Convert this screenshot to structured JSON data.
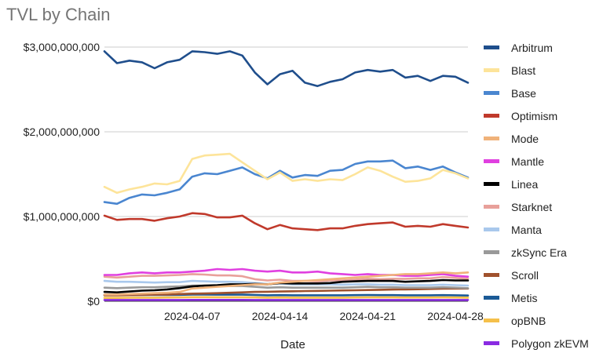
{
  "chart_data": {
    "type": "line",
    "title": "TVL by Chain",
    "xlabel": "Date",
    "ylabel": "",
    "ylim": [
      0,
      3000000000
    ],
    "y_ticks": [
      {
        "value": 0,
        "label": "$0"
      },
      {
        "value": 1000000000,
        "label": "$1,000,000,000"
      },
      {
        "value": 2000000000,
        "label": "$2,000,000,000"
      },
      {
        "value": 3000000000,
        "label": "$3,000,000,000"
      }
    ],
    "x_ticks": [
      "2024-04-07",
      "2024-04-14",
      "2024-04-21",
      "2024-04-28"
    ],
    "x": [
      "2024-03-31",
      "2024-04-01",
      "2024-04-02",
      "2024-04-03",
      "2024-04-04",
      "2024-04-05",
      "2024-04-06",
      "2024-04-07",
      "2024-04-08",
      "2024-04-09",
      "2024-04-10",
      "2024-04-11",
      "2024-04-12",
      "2024-04-13",
      "2024-04-14",
      "2024-04-15",
      "2024-04-16",
      "2024-04-17",
      "2024-04-18",
      "2024-04-19",
      "2024-04-20",
      "2024-04-21",
      "2024-04-22",
      "2024-04-23",
      "2024-04-24",
      "2024-04-25",
      "2024-04-26",
      "2024-04-27",
      "2024-04-28",
      "2024-04-29"
    ],
    "grid": true,
    "legend_position": "right",
    "series": [
      {
        "name": "Arbitrum",
        "color": "#1f4e8c",
        "values": [
          2950000000,
          2810000000,
          2840000000,
          2820000000,
          2750000000,
          2820000000,
          2850000000,
          2950000000,
          2940000000,
          2920000000,
          2950000000,
          2900000000,
          2700000000,
          2560000000,
          2680000000,
          2720000000,
          2580000000,
          2540000000,
          2590000000,
          2620000000,
          2700000000,
          2730000000,
          2710000000,
          2730000000,
          2640000000,
          2660000000,
          2600000000,
          2660000000,
          2650000000,
          2580000000
        ]
      },
      {
        "name": "Blast",
        "color": "#fde49a",
        "values": [
          1350000000,
          1280000000,
          1320000000,
          1350000000,
          1390000000,
          1380000000,
          1420000000,
          1680000000,
          1720000000,
          1730000000,
          1740000000,
          1640000000,
          1540000000,
          1440000000,
          1520000000,
          1420000000,
          1440000000,
          1420000000,
          1440000000,
          1430000000,
          1500000000,
          1580000000,
          1540000000,
          1470000000,
          1410000000,
          1420000000,
          1450000000,
          1550000000,
          1510000000,
          1450000000
        ]
      },
      {
        "name": "Base",
        "color": "#4a86d0",
        "values": [
          1170000000,
          1150000000,
          1220000000,
          1260000000,
          1250000000,
          1280000000,
          1320000000,
          1470000000,
          1510000000,
          1500000000,
          1540000000,
          1580000000,
          1500000000,
          1450000000,
          1540000000,
          1460000000,
          1490000000,
          1480000000,
          1540000000,
          1550000000,
          1620000000,
          1650000000,
          1650000000,
          1660000000,
          1570000000,
          1590000000,
          1550000000,
          1590000000,
          1520000000,
          1460000000
        ]
      },
      {
        "name": "Optimism",
        "color": "#c0392b",
        "values": [
          1010000000,
          960000000,
          970000000,
          970000000,
          950000000,
          980000000,
          1000000000,
          1040000000,
          1030000000,
          990000000,
          990000000,
          1010000000,
          920000000,
          850000000,
          900000000,
          860000000,
          850000000,
          840000000,
          860000000,
          860000000,
          890000000,
          910000000,
          920000000,
          930000000,
          880000000,
          890000000,
          880000000,
          910000000,
          890000000,
          870000000
        ]
      },
      {
        "name": "Mode",
        "color": "#f0b27a",
        "values": [
          80000000,
          80000000,
          85000000,
          90000000,
          95000000,
          100000000,
          110000000,
          150000000,
          160000000,
          170000000,
          180000000,
          190000000,
          200000000,
          200000000,
          220000000,
          230000000,
          240000000,
          250000000,
          260000000,
          270000000,
          280000000,
          290000000,
          300000000,
          310000000,
          320000000,
          320000000,
          330000000,
          340000000,
          330000000,
          340000000
        ]
      },
      {
        "name": "Mantle",
        "color": "#e040e0",
        "values": [
          310000000,
          310000000,
          330000000,
          340000000,
          330000000,
          340000000,
          340000000,
          350000000,
          360000000,
          380000000,
          370000000,
          380000000,
          360000000,
          350000000,
          360000000,
          340000000,
          340000000,
          350000000,
          330000000,
          320000000,
          310000000,
          320000000,
          310000000,
          310000000,
          300000000,
          300000000,
          310000000,
          320000000,
          300000000,
          290000000
        ]
      },
      {
        "name": "Linea",
        "color": "#000000",
        "values": [
          110000000,
          105000000,
          115000000,
          125000000,
          130000000,
          140000000,
          155000000,
          175000000,
          185000000,
          190000000,
          200000000,
          200000000,
          205000000,
          200000000,
          215000000,
          210000000,
          210000000,
          210000000,
          215000000,
          230000000,
          235000000,
          240000000,
          240000000,
          240000000,
          230000000,
          235000000,
          240000000,
          250000000,
          245000000,
          245000000
        ]
      },
      {
        "name": "Starknet",
        "color": "#e8a09a",
        "values": [
          290000000,
          280000000,
          290000000,
          300000000,
          300000000,
          305000000,
          310000000,
          320000000,
          315000000,
          305000000,
          305000000,
          295000000,
          260000000,
          245000000,
          255000000,
          240000000,
          240000000,
          235000000,
          245000000,
          245000000,
          255000000,
          265000000,
          260000000,
          265000000,
          265000000,
          270000000,
          270000000,
          285000000,
          275000000,
          265000000
        ]
      },
      {
        "name": "Manta",
        "color": "#a9c8ec",
        "values": [
          240000000,
          230000000,
          230000000,
          225000000,
          220000000,
          225000000,
          225000000,
          240000000,
          235000000,
          230000000,
          230000000,
          225000000,
          215000000,
          205000000,
          210000000,
          200000000,
          200000000,
          200000000,
          200000000,
          195000000,
          200000000,
          200000000,
          195000000,
          195000000,
          190000000,
          190000000,
          190000000,
          195000000,
          190000000,
          185000000
        ]
      },
      {
        "name": "zkSync Era",
        "color": "#999999",
        "values": [
          160000000,
          155000000,
          160000000,
          165000000,
          165000000,
          170000000,
          175000000,
          185000000,
          185000000,
          180000000,
          180000000,
          180000000,
          170000000,
          160000000,
          165000000,
          160000000,
          160000000,
          160000000,
          160000000,
          160000000,
          165000000,
          170000000,
          165000000,
          165000000,
          160000000,
          160000000,
          160000000,
          165000000,
          160000000,
          155000000
        ]
      },
      {
        "name": "Scroll",
        "color": "#a0522d",
        "values": [
          70000000,
          70000000,
          72000000,
          75000000,
          78000000,
          80000000,
          85000000,
          90000000,
          92000000,
          95000000,
          100000000,
          105000000,
          110000000,
          112000000,
          115000000,
          118000000,
          120000000,
          122000000,
          125000000,
          128000000,
          130000000,
          132000000,
          135000000,
          138000000,
          140000000,
          142000000,
          145000000,
          148000000,
          150000000,
          150000000
        ]
      },
      {
        "name": "Metis",
        "color": "#1b5a96",
        "values": [
          75000000,
          72000000,
          74000000,
          75000000,
          74000000,
          75000000,
          76000000,
          80000000,
          80000000,
          78000000,
          78000000,
          78000000,
          74000000,
          70000000,
          72000000,
          70000000,
          70000000,
          70000000,
          70000000,
          70000000,
          72000000,
          73000000,
          72000000,
          72000000,
          70000000,
          70000000,
          70000000,
          72000000,
          70000000,
          68000000
        ]
      },
      {
        "name": "opBNB",
        "color": "#f5c04a",
        "values": [
          40000000,
          40000000,
          42000000,
          43000000,
          43000000,
          44000000,
          45000000,
          48000000,
          48000000,
          47000000,
          47000000,
          47000000,
          45000000,
          43000000,
          44000000,
          43000000,
          43000000,
          43000000,
          43000000,
          43000000,
          44000000,
          45000000,
          45000000,
          45000000,
          44000000,
          44000000,
          44000000,
          45000000,
          44000000,
          43000000
        ]
      },
      {
        "name": "Polygon zkEVM",
        "color": "#8a2be2",
        "values": [
          15000000,
          15000000,
          15000000,
          15000000,
          15000000,
          15000000,
          15000000,
          16000000,
          16000000,
          16000000,
          16000000,
          16000000,
          15000000,
          15000000,
          15000000,
          15000000,
          15000000,
          15000000,
          15000000,
          15000000,
          15000000,
          15000000,
          15000000,
          15000000,
          15000000,
          15000000,
          15000000,
          15000000,
          15000000,
          15000000
        ]
      }
    ]
  }
}
